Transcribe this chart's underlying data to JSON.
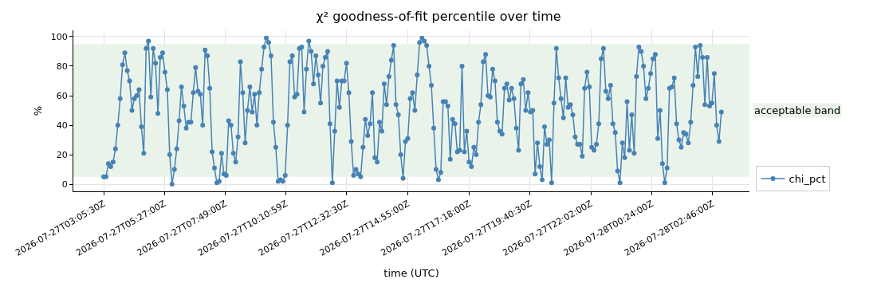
{
  "chart_data": {
    "type": "line",
    "title": "χ² goodness-of-fit percentile over time",
    "xlabel": "time (UTC)",
    "ylabel": "%",
    "xlim": [
      "2026-07-27T01:54:45",
      "2026-07-28T04:12:00"
    ],
    "xticks": [
      {
        "value": "2026-07-27T03:05:30",
        "label": "2026-07-27T03:05:30Z"
      },
      {
        "value": "2026-07-27T05:27:00",
        "label": "2026-07-27T05:27:00Z"
      },
      {
        "value": "2026-07-27T07:49:00",
        "label": "2026-07-27T07:49:00Z"
      },
      {
        "value": "2026-07-27T10:10:59",
        "label": "2026-07-27T10:10:59Z"
      },
      {
        "value": "2026-07-27T12:32:30",
        "label": "2026-07-27T12:32:30Z"
      },
      {
        "value": "2026-07-27T14:55:00",
        "label": "2026-07-27T14:55:00Z"
      },
      {
        "value": "2026-07-27T17:18:00",
        "label": "2026-07-27T17:18:00Z"
      },
      {
        "value": "2026-07-27T19:40:30",
        "label": "2026-07-27T19:40:30Z"
      },
      {
        "value": "2026-07-27T22:02:00",
        "label": "2026-07-27T22:02:00Z"
      },
      {
        "value": "2026-07-28T00:24:00",
        "label": "2026-07-28T00:24:00Z"
      },
      {
        "value": "2026-07-28T02:46:00",
        "label": "2026-07-28T02:46:00Z"
      }
    ],
    "ylim": [
      -4.8,
      104.3
    ],
    "yticks": [
      0,
      20,
      40,
      60,
      80,
      100
    ],
    "grid": true,
    "legend": "bottom right",
    "marker": "circle",
    "line_style": "solid",
    "bands": [
      {
        "axis": "y",
        "from": 5,
        "to": 95,
        "label": "acceptable band",
        "color": "#eaf3ea"
      }
    ],
    "series": [
      {
        "name": "chi_pct",
        "color": "#4682b4",
        "x": [
          "2026-07-27T03:05:30",
          "2026-07-27T03:11:00",
          "2026-07-27T03:16:30",
          "2026-07-27T03:22:00",
          "2026-07-27T03:27:30",
          "2026-07-27T03:33:00",
          "2026-07-27T03:38:30",
          "2026-07-27T03:44:00",
          "2026-07-27T03:49:30",
          "2026-07-27T03:55:00",
          "2026-07-27T04:00:30",
          "2026-07-27T04:06:00",
          "2026-07-27T04:11:30",
          "2026-07-27T04:17:00",
          "2026-07-27T04:22:30",
          "2026-07-27T04:28:00",
          "2026-07-27T04:33:30",
          "2026-07-27T04:39:00",
          "2026-07-27T04:44:30",
          "2026-07-27T04:50:00",
          "2026-07-27T04:55:30",
          "2026-07-27T05:01:00",
          "2026-07-27T05:06:30",
          "2026-07-27T05:12:00",
          "2026-07-27T05:17:30",
          "2026-07-27T05:23:00",
          "2026-07-27T05:28:30",
          "2026-07-27T05:34:00",
          "2026-07-27T05:39:30",
          "2026-07-27T05:45:00",
          "2026-07-27T05:50:30",
          "2026-07-27T05:56:00",
          "2026-07-27T06:01:30",
          "2026-07-27T06:07:00",
          "2026-07-27T06:12:30",
          "2026-07-27T06:18:00",
          "2026-07-27T06:23:30",
          "2026-07-27T06:29:00",
          "2026-07-27T06:34:30",
          "2026-07-27T06:40:00",
          "2026-07-27T06:45:30",
          "2026-07-27T06:51:00",
          "2026-07-27T06:56:30",
          "2026-07-27T07:02:00",
          "2026-07-27T07:07:30",
          "2026-07-27T07:13:00",
          "2026-07-27T07:18:30",
          "2026-07-27T07:24:00",
          "2026-07-27T07:29:30",
          "2026-07-27T07:35:00",
          "2026-07-27T07:40:30",
          "2026-07-27T07:46:00",
          "2026-07-27T07:51:30",
          "2026-07-27T07:57:00",
          "2026-07-27T08:02:30",
          "2026-07-27T08:08:00",
          "2026-07-27T08:13:30",
          "2026-07-27T08:19:00",
          "2026-07-27T08:24:30",
          "2026-07-27T08:30:00",
          "2026-07-27T08:35:30",
          "2026-07-27T08:41:00",
          "2026-07-27T08:46:30",
          "2026-07-27T08:52:00",
          "2026-07-27T08:57:30",
          "2026-07-27T09:03:00",
          "2026-07-27T09:08:30",
          "2026-07-27T09:14:00",
          "2026-07-27T09:19:30",
          "2026-07-27T09:25:00",
          "2026-07-27T09:30:30",
          "2026-07-27T09:36:00",
          "2026-07-27T09:41:30",
          "2026-07-27T09:47:00",
          "2026-07-27T09:52:30",
          "2026-07-27T09:58:00",
          "2026-07-27T10:03:30",
          "2026-07-27T10:09:00",
          "2026-07-27T10:14:30",
          "2026-07-27T10:20:00",
          "2026-07-27T10:25:30",
          "2026-07-27T10:31:00",
          "2026-07-27T10:36:30",
          "2026-07-27T10:42:00",
          "2026-07-27T10:47:30",
          "2026-07-27T10:53:00",
          "2026-07-27T10:58:30",
          "2026-07-27T11:04:00",
          "2026-07-27T11:09:30",
          "2026-07-27T11:15:00",
          "2026-07-27T11:20:30",
          "2026-07-27T11:26:00",
          "2026-07-27T11:31:30",
          "2026-07-27T11:37:00",
          "2026-07-27T11:42:30",
          "2026-07-27T11:48:00",
          "2026-07-27T11:53:30",
          "2026-07-27T11:59:00",
          "2026-07-27T12:04:30",
          "2026-07-27T12:10:00",
          "2026-07-27T12:15:30",
          "2026-07-27T12:21:00",
          "2026-07-27T12:26:30",
          "2026-07-27T12:32:00",
          "2026-07-27T12:37:30",
          "2026-07-27T12:43:00",
          "2026-07-27T12:48:30",
          "2026-07-27T12:54:00",
          "2026-07-27T12:59:30",
          "2026-07-27T13:05:00",
          "2026-07-27T13:10:30",
          "2026-07-27T13:16:00",
          "2026-07-27T13:21:30",
          "2026-07-27T13:27:00",
          "2026-07-27T13:32:30",
          "2026-07-27T13:38:00",
          "2026-07-27T13:43:30",
          "2026-07-27T13:49:00",
          "2026-07-27T13:54:30",
          "2026-07-27T14:00:00",
          "2026-07-27T14:05:30",
          "2026-07-27T14:11:00",
          "2026-07-27T14:16:30",
          "2026-07-27T14:22:00",
          "2026-07-27T14:27:30",
          "2026-07-27T14:33:00",
          "2026-07-27T14:38:30",
          "2026-07-27T14:44:00",
          "2026-07-27T14:49:30",
          "2026-07-27T14:55:00",
          "2026-07-27T15:00:30",
          "2026-07-27T15:06:00",
          "2026-07-27T15:11:30",
          "2026-07-27T15:17:00",
          "2026-07-27T15:22:30",
          "2026-07-27T15:28:00",
          "2026-07-27T15:33:30",
          "2026-07-27T15:39:00",
          "2026-07-27T15:44:30",
          "2026-07-27T15:50:00",
          "2026-07-27T15:55:30",
          "2026-07-27T16:01:00",
          "2026-07-27T16:06:30",
          "2026-07-27T16:12:00",
          "2026-07-27T16:17:30",
          "2026-07-27T16:23:00",
          "2026-07-27T16:28:30",
          "2026-07-27T16:34:00",
          "2026-07-27T16:39:30",
          "2026-07-27T16:45:00",
          "2026-07-27T16:50:30",
          "2026-07-27T16:56:00",
          "2026-07-27T17:01:30",
          "2026-07-27T17:07:00",
          "2026-07-27T17:12:30",
          "2026-07-27T17:18:00",
          "2026-07-27T17:23:30",
          "2026-07-27T17:29:00",
          "2026-07-27T17:34:30",
          "2026-07-27T17:40:00",
          "2026-07-27T17:45:30",
          "2026-07-27T17:51:00",
          "2026-07-27T17:56:30",
          "2026-07-27T18:02:00",
          "2026-07-27T18:07:30",
          "2026-07-27T18:13:00",
          "2026-07-27T18:18:30",
          "2026-07-27T18:24:00",
          "2026-07-27T18:29:30",
          "2026-07-27T18:35:00",
          "2026-07-27T18:40:30",
          "2026-07-27T18:46:00",
          "2026-07-27T18:51:30",
          "2026-07-27T18:57:00",
          "2026-07-27T19:02:30",
          "2026-07-27T19:08:00",
          "2026-07-27T19:13:30",
          "2026-07-27T19:19:00",
          "2026-07-27T19:24:30",
          "2026-07-27T19:30:00",
          "2026-07-27T19:35:30",
          "2026-07-27T19:41:00",
          "2026-07-27T19:46:30",
          "2026-07-27T19:52:00",
          "2026-07-27T19:57:30",
          "2026-07-27T20:03:00",
          "2026-07-27T20:08:30",
          "2026-07-27T20:14:00",
          "2026-07-27T20:19:30",
          "2026-07-27T20:25:00",
          "2026-07-27T20:30:30",
          "2026-07-27T20:36:00",
          "2026-07-27T20:41:30",
          "2026-07-27T20:47:00",
          "2026-07-27T20:52:30",
          "2026-07-27T20:58:00",
          "2026-07-27T21:03:30",
          "2026-07-27T21:09:00",
          "2026-07-27T21:14:30",
          "2026-07-27T21:20:00",
          "2026-07-27T21:25:30",
          "2026-07-27T21:31:00",
          "2026-07-27T21:36:30",
          "2026-07-27T21:42:00",
          "2026-07-27T21:47:30",
          "2026-07-27T21:53:00",
          "2026-07-27T21:58:30",
          "2026-07-27T22:04:00",
          "2026-07-27T22:09:30",
          "2026-07-27T22:15:00",
          "2026-07-27T22:20:30",
          "2026-07-27T22:26:00",
          "2026-07-27T22:31:30",
          "2026-07-27T22:37:00",
          "2026-07-27T22:42:30",
          "2026-07-27T22:48:00",
          "2026-07-27T22:53:30",
          "2026-07-27T22:59:00",
          "2026-07-27T23:04:30",
          "2026-07-27T23:10:00",
          "2026-07-27T23:15:30",
          "2026-07-27T23:21:00",
          "2026-07-27T23:26:30",
          "2026-07-27T23:32:00",
          "2026-07-27T23:37:30",
          "2026-07-27T23:43:00",
          "2026-07-27T23:48:30",
          "2026-07-27T23:54:00",
          "2026-07-27T23:59:30",
          "2026-07-28T00:05:00",
          "2026-07-28T00:10:30",
          "2026-07-28T00:16:00",
          "2026-07-28T00:21:30",
          "2026-07-28T00:27:00",
          "2026-07-28T00:32:30",
          "2026-07-28T00:38:00",
          "2026-07-28T00:43:30",
          "2026-07-28T00:49:00",
          "2026-07-28T00:54:30",
          "2026-07-28T01:00:00",
          "2026-07-28T01:05:30",
          "2026-07-28T01:11:00",
          "2026-07-28T01:16:30",
          "2026-07-28T01:22:00",
          "2026-07-28T01:27:30",
          "2026-07-28T01:33:00",
          "2026-07-28T01:38:30",
          "2026-07-28T01:44:00",
          "2026-07-28T01:49:30",
          "2026-07-28T01:55:00",
          "2026-07-28T02:00:30",
          "2026-07-28T02:06:00",
          "2026-07-28T02:11:30",
          "2026-07-28T02:17:00",
          "2026-07-28T02:22:30",
          "2026-07-28T02:28:00",
          "2026-07-28T02:33:30",
          "2026-07-28T02:39:00",
          "2026-07-28T02:44:30",
          "2026-07-28T02:50:00",
          "2026-07-28T02:55:30",
          "2026-07-28T03:01:00",
          "2026-07-28T03:06:30"
        ],
        "values": [
          5,
          5,
          14,
          12,
          15,
          24,
          40,
          58,
          81,
          89,
          77,
          70,
          50,
          58,
          60,
          64,
          39,
          21,
          92,
          97,
          59,
          92,
          82,
          48,
          86,
          89,
          76,
          64,
          20,
          0,
          10,
          24,
          43,
          66,
          53,
          38,
          42,
          42,
          62,
          79,
          63,
          61,
          40,
          91,
          87,
          65,
          22,
          11,
          1,
          2,
          21,
          7,
          6,
          43,
          40,
          21,
          15,
          32,
          83,
          62,
          28,
          50,
          66,
          49,
          61,
          40,
          62,
          78,
          93,
          99,
          96,
          87,
          42,
          25,
          2,
          3,
          2,
          6,
          40,
          83,
          87,
          59,
          61,
          92,
          93,
          49,
          78,
          97,
          90,
          68,
          87,
          74,
          55,
          80,
          86,
          90,
          41,
          1,
          36,
          70,
          52,
          70,
          70,
          82,
          62,
          29,
          6,
          10,
          7,
          5,
          25,
          44,
          33,
          41,
          62,
          18,
          15,
          42,
          36,
          68,
          54,
          73,
          84,
          94,
          54,
          47,
          20,
          4,
          29,
          31,
          58,
          62,
          50,
          74,
          96,
          99,
          97,
          94,
          80,
          67,
          38,
          10,
          3,
          8,
          56,
          56,
          53,
          17,
          44,
          41,
          22,
          23,
          80,
          22,
          36,
          15,
          12,
          25,
          20,
          42,
          54,
          83,
          88,
          60,
          59,
          78,
          70,
          42,
          36,
          34,
          65,
          68,
          57,
          65,
          58,
          38,
          23,
          68,
          71,
          50,
          62,
          49,
          50,
          7,
          28,
          12,
          3,
          39,
          27,
          30,
          1,
          55,
          92,
          72,
          58,
          45,
          72,
          52,
          54,
          47,
          32,
          27,
          27,
          19,
          65,
          76,
          66,
          25,
          23,
          27,
          41,
          85,
          92,
          63,
          58,
          67,
          41,
          35,
          9,
          1,
          28,
          18,
          56,
          23,
          47,
          21,
          73,
          93,
          90,
          80,
          58,
          65,
          75,
          85,
          88,
          31,
          50,
          14,
          1,
          11,
          65,
          66,
          72,
          41,
          30,
          25,
          35,
          34,
          28,
          42,
          67,
          93,
          73,
          94,
          86,
          54,
          86,
          53,
          55,
          75,
          40,
          29,
          49
        ]
      }
    ]
  }
}
